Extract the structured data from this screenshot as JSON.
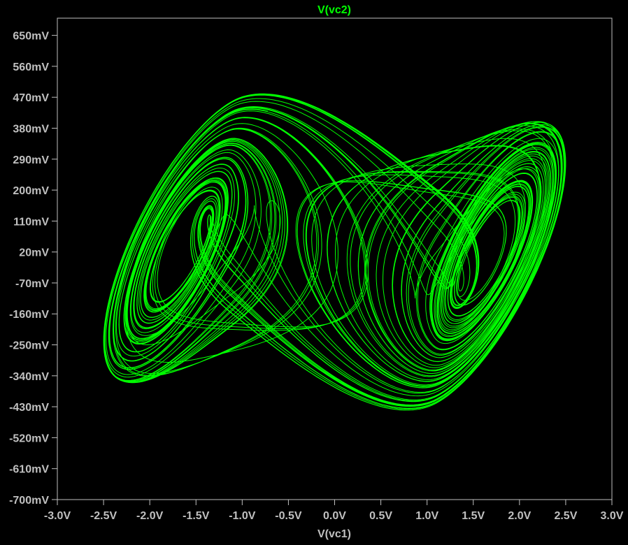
{
  "chart_data": {
    "type": "line",
    "title": "V(vc2)",
    "xlabel": "V(vc1)",
    "ylabel": "",
    "xlim": [
      -3.0,
      3.0
    ],
    "ylim": [
      -0.7,
      0.7
    ],
    "x_ticks": [
      -3.0,
      -2.5,
      -2.0,
      -1.5,
      -1.0,
      -0.5,
      0.0,
      0.5,
      1.0,
      1.5,
      2.0,
      2.5,
      3.0
    ],
    "x_tick_labels": [
      "-3.0V",
      "-2.5V",
      "-2.0V",
      "-1.5V",
      "-1.0V",
      "-0.5V",
      "0.0V",
      "0.5V",
      "1.0V",
      "1.5V",
      "2.0V",
      "2.5V",
      "3.0V"
    ],
    "y_ticks": [
      0.65,
      0.56,
      0.47,
      0.38,
      0.29,
      0.2,
      0.11,
      0.02,
      -0.07,
      -0.16,
      -0.25,
      -0.34,
      -0.43,
      -0.52,
      -0.61,
      -0.7
    ],
    "y_tick_labels": [
      "650mV",
      "560mV",
      "470mV",
      "380mV",
      "290mV",
      "200mV",
      "110mV",
      "20mV",
      "-70mV",
      "-160mV",
      "-250mV",
      "-340mV",
      "-430mV",
      "-520mV",
      "-610mV",
      "-700mV"
    ],
    "grid": false,
    "series": [
      {
        "trajectory": "double-scroll attractor",
        "left_scroll_center": [
          -1.6,
          0.0
        ],
        "right_scroll_center": [
          1.6,
          0.0
        ],
        "x_range": [
          -2.5,
          2.5
        ],
        "y_range": [
          -0.44,
          0.48
        ]
      }
    ],
    "colors": {
      "background": "#000000",
      "trace": "#00ff00",
      "title": "#00ff00",
      "axis_text": "#c0c0c0",
      "frame": "#c0c0c0"
    }
  }
}
